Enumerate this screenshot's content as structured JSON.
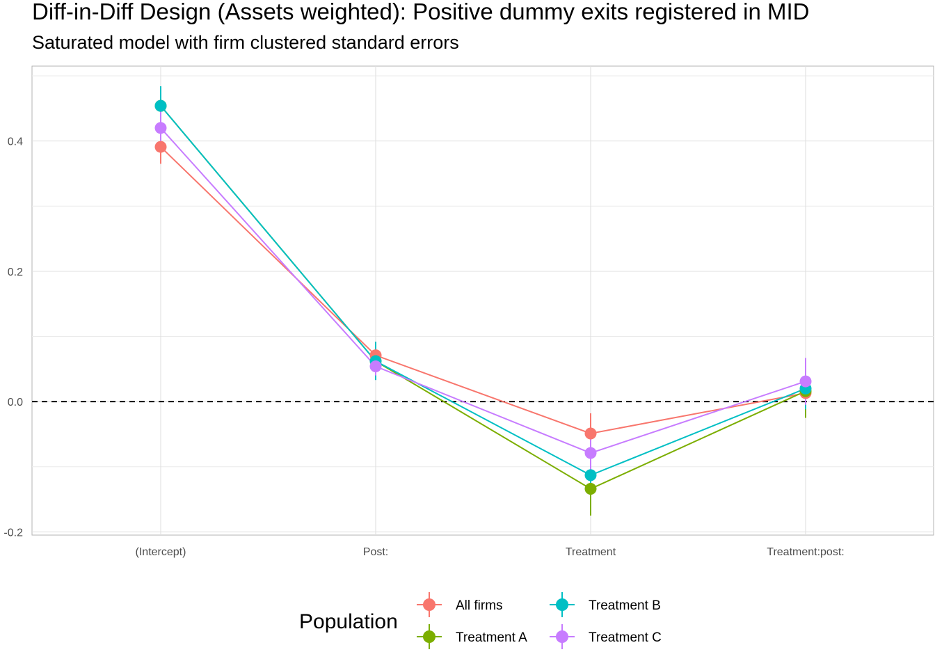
{
  "chart_data": {
    "type": "line",
    "title": "Diff-in-Diff Design (Assets weighted): Positive dummy exits registered in MID",
    "subtitle": "Saturated model with firm clustered standard errors",
    "xlabel": "",
    "ylabel": "",
    "categories": [
      "(Intercept)",
      "Post:",
      "Treatment",
      "Treatment:post:"
    ],
    "ylim": [
      -0.205,
      0.515
    ],
    "y_ticks": [
      -0.2,
      0.0,
      0.2,
      0.4
    ],
    "y_tick_labels": [
      "-0.2",
      "0.0",
      "0.2",
      "0.4"
    ],
    "reference_line": {
      "y": 0.0,
      "style": "dashed"
    },
    "grid": true,
    "legend": {
      "title": "Population",
      "position": "bottom"
    },
    "series": [
      {
        "name": "All firms",
        "color": "#F8766D",
        "values": [
          0.391,
          0.071,
          -0.049,
          0.013
        ],
        "ci_low": [
          0.365,
          0.052,
          -0.08,
          -0.01
        ],
        "ci_high": [
          0.418,
          0.09,
          -0.018,
          0.036
        ]
      },
      {
        "name": "Treatment A",
        "color": "#7CAE00",
        "values": [
          0.454,
          0.062,
          -0.134,
          0.016
        ],
        "ci_low": [
          0.424,
          0.04,
          -0.175,
          -0.025
        ],
        "ci_high": [
          0.484,
          0.084,
          -0.093,
          0.057
        ]
      },
      {
        "name": "Treatment B",
        "color": "#00BFC4",
        "values": [
          0.454,
          0.062,
          -0.113,
          0.02
        ],
        "ci_low": [
          0.424,
          0.033,
          -0.135,
          -0.012
        ],
        "ci_high": [
          0.484,
          0.092,
          -0.091,
          0.05
        ]
      },
      {
        "name": "Treatment C",
        "color": "#C77CFF",
        "values": [
          0.42,
          0.054,
          -0.079,
          0.031
        ],
        "ci_low": [
          0.394,
          0.04,
          -0.105,
          -0.005
        ],
        "ci_high": [
          0.446,
          0.068,
          -0.053,
          0.067
        ]
      }
    ]
  }
}
